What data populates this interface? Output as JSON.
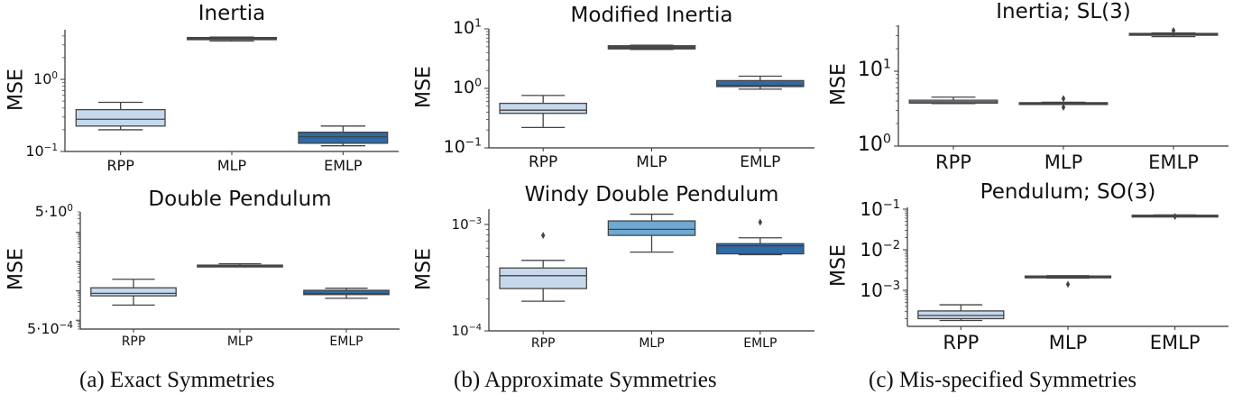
{
  "figure": {
    "captions": {
      "a": "(a) Exact Symmetries",
      "b": "(b) Approximate Symmetries",
      "c": "(c) Mis-specified Symmetries"
    },
    "colors": {
      "RPP": "#c6d9ec",
      "MLP_light": "#6fa8d2",
      "EMLP": "#2f6aa8",
      "dark": "#4a4f55",
      "edge": "#444444"
    }
  },
  "chart_data": [
    {
      "id": "a_top",
      "type": "box",
      "title": "Inertia",
      "group": "(a) Exact Symmetries",
      "xlabel": "",
      "ylabel": "MSE",
      "yscale": "log",
      "ytick_labels": [
        "10^0",
        "10^-1"
      ],
      "ylim": [
        0.1,
        4.8
      ],
      "categories": [
        "RPP",
        "MLP",
        "EMLP"
      ],
      "boxes": [
        {
          "name": "RPP",
          "whislo": 0.2,
          "q1": 0.225,
          "med": 0.28,
          "q3": 0.38,
          "whishi": 0.48,
          "fliers": []
        },
        {
          "name": "MLP",
          "whislo": 3.4,
          "q1": 3.55,
          "med": 3.65,
          "q3": 3.8,
          "whishi": 3.85,
          "fliers": []
        },
        {
          "name": "EMLP",
          "whislo": 0.12,
          "q1": 0.13,
          "med": 0.16,
          "q3": 0.185,
          "whishi": 0.225,
          "fliers": []
        }
      ]
    },
    {
      "id": "a_bottom",
      "type": "box",
      "title": "Double Pendulum",
      "group": "(a) Exact Symmetries",
      "xlabel": "",
      "ylabel": "MSE",
      "yscale": "log",
      "ytick_labels": [
        "5·10^0",
        "5·10^-4"
      ],
      "ylim": [
        0.0005,
        5
      ],
      "categories": [
        "RPP",
        "MLP",
        "EMLP"
      ],
      "boxes": [
        {
          "name": "RPP",
          "whislo": 0.0033,
          "q1": 0.0068,
          "med": 0.0083,
          "q3": 0.0128,
          "whishi": 0.025,
          "fliers": []
        },
        {
          "name": "MLP",
          "whislo": 0.068,
          "q1": 0.07,
          "med": 0.073,
          "q3": 0.076,
          "whishi": 0.085,
          "fliers": []
        },
        {
          "name": "EMLP",
          "whislo": 0.0056,
          "q1": 0.0075,
          "med": 0.0081,
          "q3": 0.0105,
          "whishi": 0.0124,
          "fliers": []
        }
      ]
    },
    {
      "id": "b_top",
      "type": "box",
      "title": "Modified Inertia",
      "group": "(b) Approximate Symmetries",
      "xlabel": "",
      "ylabel": "MSE",
      "yscale": "log",
      "ytick_labels": [
        "10^1",
        "10^0",
        "10^-1"
      ],
      "ylim": [
        0.1,
        10
      ],
      "categories": [
        "RPP",
        "MLP",
        "EMLP"
      ],
      "boxes": [
        {
          "name": "RPP",
          "whislo": 0.22,
          "q1": 0.38,
          "med": 0.43,
          "q3": 0.56,
          "whishi": 0.76,
          "fliers": []
        },
        {
          "name": "MLP",
          "whislo": 4.5,
          "q1": 4.6,
          "med": 4.8,
          "q3": 5.2,
          "whishi": 5.3,
          "fliers": []
        },
        {
          "name": "EMLP",
          "whislo": 0.97,
          "q1": 1.07,
          "med": 1.13,
          "q3": 1.35,
          "whishi": 1.6,
          "fliers": []
        }
      ]
    },
    {
      "id": "b_bottom",
      "type": "box",
      "title": "Windy Double Pendulum",
      "group": "(b) Approximate Symmetries",
      "xlabel": "",
      "ylabel": "MSE",
      "yscale": "log",
      "ytick_labels": [
        "10^-3",
        "10^-4"
      ],
      "ylim": [
        0.0001,
        0.00135
      ],
      "categories": [
        "RPP",
        "MLP",
        "EMLP"
      ],
      "boxes": [
        {
          "name": "RPP",
          "whislo": 0.00019,
          "q1": 0.00025,
          "med": 0.00033,
          "q3": 0.00039,
          "whishi": 0.00046,
          "fliers": [
            0.00079
          ]
        },
        {
          "name": "MLP",
          "whislo": 0.00055,
          "q1": 0.00079,
          "med": 0.0009,
          "q3": 0.00108,
          "whishi": 0.00125,
          "fliers": []
        },
        {
          "name": "EMLP",
          "whislo": 0.00052,
          "q1": 0.00053,
          "med": 0.00063,
          "q3": 0.00066,
          "whishi": 0.00075,
          "fliers": [
            0.00105
          ]
        }
      ]
    },
    {
      "id": "c_top",
      "type": "box",
      "title": "Inertia; SL(3)",
      "group": "(c) Mis-specified Symmetries",
      "xlabel": "",
      "ylabel": "MSE",
      "yscale": "log",
      "ytick_labels": [
        "10^1",
        "10^0"
      ],
      "ylim": [
        1,
        40
      ],
      "categories": [
        "RPP",
        "MLP",
        "EMLP"
      ],
      "boxes": [
        {
          "name": "RPP",
          "whislo": 3.7,
          "q1": 3.75,
          "med": 3.9,
          "q3": 4.1,
          "whishi": 4.5,
          "fliers": []
        },
        {
          "name": "MLP",
          "whislo": 3.6,
          "q1": 3.65,
          "med": 3.7,
          "q3": 3.8,
          "whishi": 3.85,
          "fliers": [
            3.3,
            4.3
          ]
        },
        {
          "name": "EMLP",
          "whislo": 29,
          "q1": 30.5,
          "med": 31,
          "q3": 32,
          "whishi": 32.5,
          "fliers": [
            35
          ]
        }
      ]
    },
    {
      "id": "c_bottom",
      "type": "box",
      "title": "Pendulum; SO(3)",
      "group": "(c) Mis-specified Symmetries",
      "xlabel": "",
      "ylabel": "MSE",
      "yscale": "log",
      "ytick_labels": [
        "10^-1",
        "10^-2",
        "10^-3"
      ],
      "ylim": [
        0.00013,
        0.1
      ],
      "categories": [
        "RPP",
        "MLP",
        "EMLP"
      ],
      "boxes": [
        {
          "name": "RPP",
          "whislo": 0.00018,
          "q1": 0.0002,
          "med": 0.00024,
          "q3": 0.00031,
          "whishi": 0.00044,
          "fliers": []
        },
        {
          "name": "MLP",
          "whislo": 0.002,
          "q1": 0.00205,
          "med": 0.0021,
          "q3": 0.00225,
          "whishi": 0.0023,
          "fliers": [
            0.0014
          ]
        },
        {
          "name": "EMLP",
          "whislo": 0.068,
          "q1": 0.069,
          "med": 0.07,
          "q3": 0.071,
          "whishi": 0.072,
          "fliers": [
            0.066
          ]
        }
      ]
    }
  ],
  "panels": {
    "a_top": {
      "title": "Inertia",
      "ylabel": "MSE",
      "x": [
        "RPP",
        "MLP",
        "EMLP"
      ]
    },
    "a_bottom": {
      "title": "Double Pendulum",
      "ylabel": "MSE",
      "x": [
        "RPP",
        "MLP",
        "EMLP"
      ]
    },
    "b_top": {
      "title": "Modified Inertia",
      "ylabel": "MSE",
      "x": [
        "RPP",
        "MLP",
        "EMLP"
      ]
    },
    "b_bottom": {
      "title": "Windy Double Pendulum",
      "ylabel": "MSE",
      "x": [
        "RPP",
        "MLP",
        "EMLP"
      ]
    },
    "c_top": {
      "title": "Inertia; SL(3)",
      "ylabel": "MSE",
      "x": [
        "RPP",
        "MLP",
        "EMLP"
      ]
    },
    "c_bottom": {
      "title": "Pendulum; SO(3)",
      "ylabel": "MSE",
      "x": [
        "RPP",
        "MLP",
        "EMLP"
      ]
    }
  }
}
